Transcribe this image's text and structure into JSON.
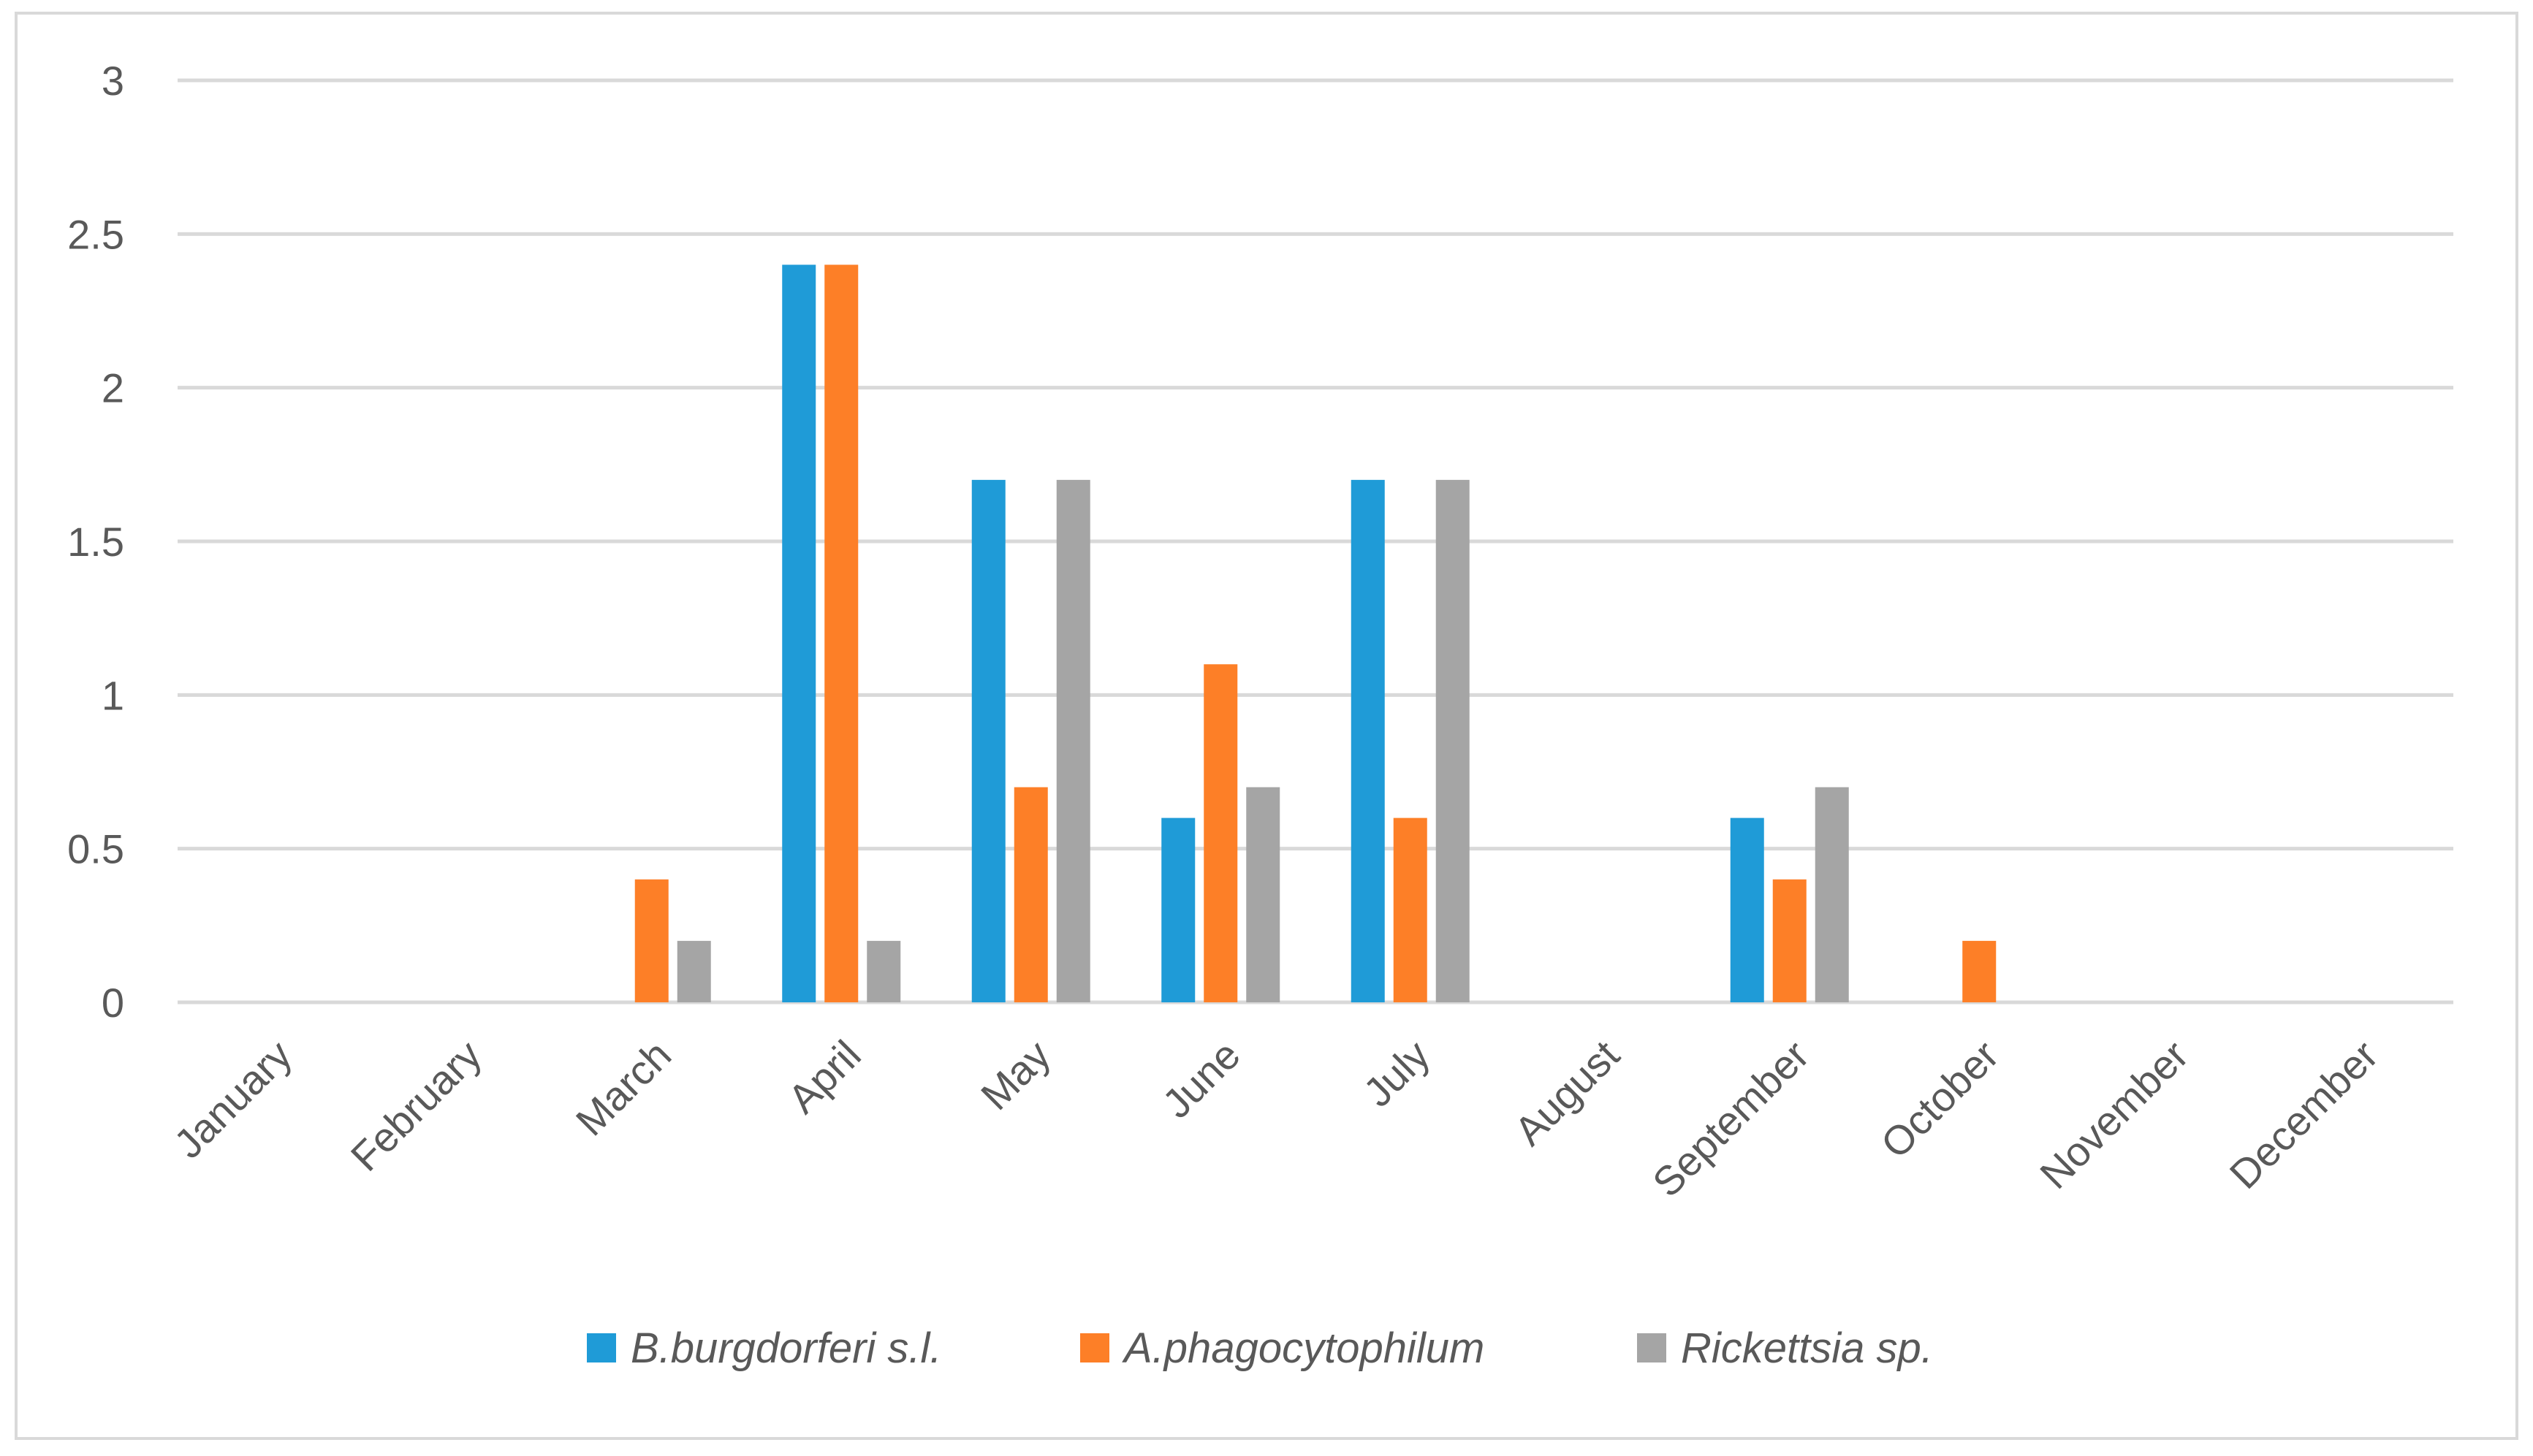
{
  "chart_data": {
    "type": "bar",
    "title": "",
    "xlabel": "",
    "ylabel": "",
    "ylim": [
      0,
      3
    ],
    "yticks": [
      "0",
      "0.5",
      "1",
      "1.5",
      "2",
      "2.5",
      "3"
    ],
    "grid": true,
    "legend_position": "bottom",
    "categories": [
      "January",
      "February",
      "March",
      "April",
      "May",
      "June",
      "July",
      "August",
      "September",
      "October",
      "November",
      "December"
    ],
    "series": [
      {
        "name": "B.burgdorferi s.l.",
        "color": "#1f9bd7",
        "values": [
          0,
          0,
          0,
          2.4,
          1.7,
          0.6,
          1.7,
          0,
          0.6,
          0,
          0,
          0
        ]
      },
      {
        "name": "A.phagocytophilum",
        "color": "#fd7f27",
        "values": [
          0,
          0,
          0.4,
          2.4,
          0.7,
          1.1,
          0.6,
          0,
          0.4,
          0.2,
          0,
          0
        ]
      },
      {
        "name": "Rickettsia sp.",
        "color": "#a5a5a5",
        "values": [
          0,
          0,
          0.2,
          0.2,
          1.7,
          0.7,
          1.7,
          0,
          0.7,
          0,
          0,
          0
        ]
      }
    ]
  }
}
